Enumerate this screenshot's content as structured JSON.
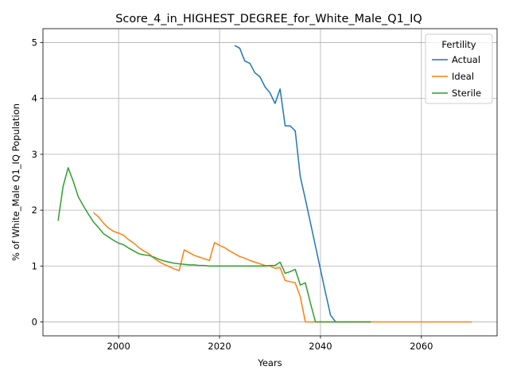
{
  "chart_data": {
    "type": "line",
    "title": "Score_4_in_HIGHEST_DEGREE_for_White_Male_Q1_IQ",
    "xlabel": "Years",
    "ylabel": "% of White_Male Q1_IQ Population",
    "xlim": [
      1985,
      2075
    ],
    "ylim": [
      -0.25,
      5.25
    ],
    "xticks": [
      2000,
      2020,
      2040,
      2060
    ],
    "yticks": [
      0,
      1,
      2,
      3,
      4,
      5
    ],
    "grid": true,
    "legend": {
      "title": "Fertility",
      "placement": "top-right"
    },
    "colors": {
      "Actual": "#1f77b4",
      "Ideal": "#ff7f0e",
      "Sterile": "#2ca02c"
    },
    "series": [
      {
        "name": "Actual",
        "x": [
          2023,
          2024,
          2025,
          2026,
          2027,
          2028,
          2029,
          2030,
          2031,
          2032,
          2033,
          2034,
          2035,
          2036,
          2037,
          2038,
          2039,
          2040,
          2041,
          2042,
          2043,
          2044,
          2045,
          2046,
          2047,
          2048,
          2049,
          2050
        ],
        "y": [
          4.95,
          4.9,
          4.67,
          4.63,
          4.46,
          4.39,
          4.21,
          4.1,
          3.91,
          4.17,
          3.51,
          3.51,
          3.42,
          2.6,
          2.2,
          1.78,
          1.36,
          0.94,
          0.52,
          0.12,
          0.0,
          0.0,
          0.0,
          0.0,
          0.0,
          0.0,
          0.0,
          0.0
        ]
      },
      {
        "name": "Ideal",
        "x": [
          1995,
          1996,
          1997,
          1998,
          1999,
          2000,
          2001,
          2002,
          2003,
          2004,
          2005,
          2006,
          2007,
          2008,
          2009,
          2010,
          2011,
          2012,
          2013,
          2014,
          2015,
          2016,
          2017,
          2018,
          2019,
          2020,
          2021,
          2022,
          2023,
          2024,
          2025,
          2026,
          2027,
          2028,
          2029,
          2030,
          2031,
          2032,
          2033,
          2034,
          2035,
          2036,
          2037,
          2038,
          2039,
          2040,
          2050,
          2060,
          2070
        ],
        "y": [
          1.96,
          1.88,
          1.77,
          1.68,
          1.62,
          1.59,
          1.55,
          1.47,
          1.41,
          1.33,
          1.27,
          1.22,
          1.14,
          1.08,
          1.03,
          0.99,
          0.95,
          0.92,
          1.29,
          1.24,
          1.19,
          1.16,
          1.13,
          1.1,
          1.42,
          1.37,
          1.33,
          1.27,
          1.22,
          1.17,
          1.14,
          1.1,
          1.07,
          1.04,
          1.01,
          1.0,
          0.96,
          0.97,
          0.74,
          0.72,
          0.7,
          0.45,
          0.0,
          0.0,
          0.0,
          0.0,
          0.0,
          0.0,
          0.0
        ]
      },
      {
        "name": "Sterile",
        "x": [
          1988,
          1989,
          1990,
          1991,
          1992,
          1993,
          1994,
          1995,
          1996,
          1997,
          1998,
          1999,
          2000,
          2001,
          2002,
          2003,
          2004,
          2005,
          2006,
          2007,
          2008,
          2009,
          2010,
          2011,
          2012,
          2013,
          2014,
          2015,
          2016,
          2017,
          2018,
          2019,
          2020,
          2021,
          2022,
          2023,
          2024,
          2025,
          2026,
          2027,
          2028,
          2029,
          2030,
          2031,
          2032,
          2033,
          2034,
          2035,
          2036,
          2037,
          2038,
          2039,
          2040,
          2045,
          2050
        ],
        "y": [
          1.81,
          2.43,
          2.76,
          2.52,
          2.24,
          2.08,
          1.93,
          1.79,
          1.69,
          1.58,
          1.52,
          1.46,
          1.41,
          1.38,
          1.32,
          1.27,
          1.22,
          1.2,
          1.19,
          1.16,
          1.12,
          1.09,
          1.07,
          1.05,
          1.04,
          1.03,
          1.02,
          1.02,
          1.01,
          1.01,
          1.0,
          1.0,
          1.0,
          1.0,
          1.0,
          1.0,
          1.0,
          1.0,
          1.0,
          1.0,
          1.0,
          1.0,
          1.01,
          1.01,
          1.07,
          0.87,
          0.9,
          0.94,
          0.66,
          0.7,
          0.34,
          0.0,
          0.0,
          0.0,
          0.0
        ]
      }
    ]
  }
}
